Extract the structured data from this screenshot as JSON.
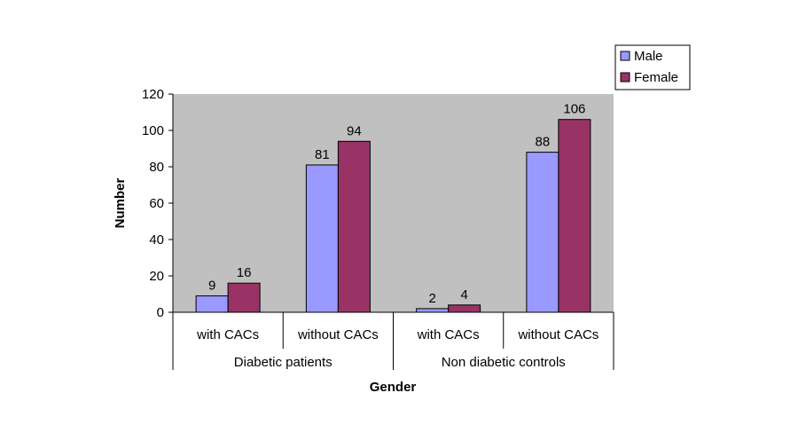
{
  "chart_data": {
    "type": "bar",
    "title": "",
    "xlabel": "Gender",
    "ylabel": "Number",
    "ylim": [
      0,
      120
    ],
    "yticks": [
      0,
      20,
      40,
      60,
      80,
      100,
      120
    ],
    "grid": false,
    "legend_position": "top-right",
    "categories": [
      "with CACs",
      "without CACs",
      "with CACs",
      "without CACs"
    ],
    "groups": [
      {
        "label": "Diabetic patients",
        "span": [
          0,
          1
        ]
      },
      {
        "label": "Non diabetic controls",
        "span": [
          2,
          3
        ]
      }
    ],
    "series": [
      {
        "name": "Male",
        "color": "#9999ff",
        "values": [
          9,
          81,
          2,
          88
        ]
      },
      {
        "name": "Female",
        "color": "#993366",
        "values": [
          16,
          94,
          4,
          106
        ]
      }
    ],
    "plot_background": "#c0c0c0"
  }
}
